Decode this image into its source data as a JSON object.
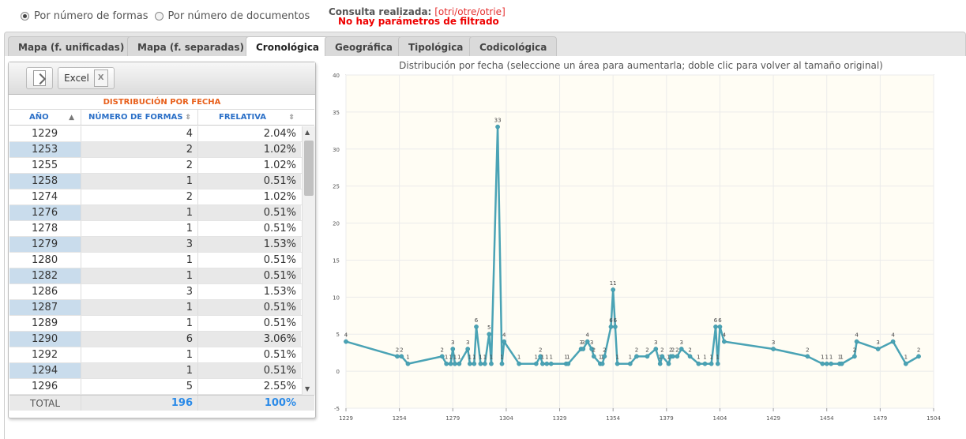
{
  "mode": {
    "option_forms": "Por número de formas",
    "option_docs": "Por número de documentos",
    "selected": "forms"
  },
  "query": {
    "label": "Consulta realizada:",
    "value": "[otri/otre/otrie]",
    "no_filter": "No hay parámetros de filtrado"
  },
  "tabs": [
    {
      "label": "Mapa (f. unificadas)"
    },
    {
      "label": "Mapa (f. separadas)"
    },
    {
      "label": "Cronológica",
      "active": true
    },
    {
      "label": "Geográfica"
    },
    {
      "label": "Tipológica"
    },
    {
      "label": "Codicológica"
    }
  ],
  "toolbar": {
    "excel_label": "Excel"
  },
  "table": {
    "caption": "DISTRIBUCIÓN POR FECHA",
    "headers": {
      "year": "AÑO",
      "count": "NÚMERO DE FORMAS",
      "rel": "FRELATIVA"
    },
    "rows": [
      {
        "year": "1229",
        "count": "4",
        "rel": "2.04%"
      },
      {
        "year": "1253",
        "count": "2",
        "rel": "1.02%"
      },
      {
        "year": "1255",
        "count": "2",
        "rel": "1.02%"
      },
      {
        "year": "1258",
        "count": "1",
        "rel": "0.51%"
      },
      {
        "year": "1274",
        "count": "2",
        "rel": "1.02%"
      },
      {
        "year": "1276",
        "count": "1",
        "rel": "0.51%"
      },
      {
        "year": "1278",
        "count": "1",
        "rel": "0.51%"
      },
      {
        "year": "1279",
        "count": "3",
        "rel": "1.53%"
      },
      {
        "year": "1280",
        "count": "1",
        "rel": "0.51%"
      },
      {
        "year": "1282",
        "count": "1",
        "rel": "0.51%"
      },
      {
        "year": "1286",
        "count": "3",
        "rel": "1.53%"
      },
      {
        "year": "1287",
        "count": "1",
        "rel": "0.51%"
      },
      {
        "year": "1289",
        "count": "1",
        "rel": "0.51%"
      },
      {
        "year": "1290",
        "count": "6",
        "rel": "3.06%"
      },
      {
        "year": "1292",
        "count": "1",
        "rel": "0.51%"
      },
      {
        "year": "1294",
        "count": "1",
        "rel": "0.51%"
      },
      {
        "year": "1296",
        "count": "5",
        "rel": "2.55%"
      }
    ],
    "total": {
      "label": "TOTAL",
      "count": "196",
      "rel": "100%"
    }
  },
  "chart_data": {
    "type": "line",
    "title": "Distribución por fecha (seleccione un área para aumentarla; doble clic para volver al tamaño original)",
    "xlim": [
      1229,
      1504
    ],
    "ylim": [
      -5,
      40
    ],
    "x_ticks": [
      1229,
      1254,
      1279,
      1304,
      1329,
      1354,
      1379,
      1404,
      1429,
      1454,
      1479,
      1504
    ],
    "y_ticks": [
      -5,
      0,
      5,
      10,
      15,
      20,
      25,
      30,
      35,
      40
    ],
    "grid": true,
    "color": "#4aa3b5",
    "points": [
      [
        1229,
        4
      ],
      [
        1253,
        2
      ],
      [
        1255,
        2
      ],
      [
        1258,
        1
      ],
      [
        1274,
        2
      ],
      [
        1276,
        1
      ],
      [
        1278,
        1
      ],
      [
        1279,
        3
      ],
      [
        1280,
        1
      ],
      [
        1282,
        1
      ],
      [
        1286,
        3
      ],
      [
        1287,
        1
      ],
      [
        1289,
        1
      ],
      [
        1290,
        6
      ],
      [
        1292,
        1
      ],
      [
        1294,
        1
      ],
      [
        1296,
        5
      ],
      [
        1297,
        1
      ],
      [
        1300,
        33
      ],
      [
        1302,
        1
      ],
      [
        1303,
        4
      ],
      [
        1310,
        1
      ],
      [
        1318,
        1
      ],
      [
        1320,
        2
      ],
      [
        1321,
        1
      ],
      [
        1323,
        1
      ],
      [
        1325,
        1
      ],
      [
        1332,
        1
      ],
      [
        1333,
        1
      ],
      [
        1339,
        3
      ],
      [
        1340,
        3
      ],
      [
        1342,
        4
      ],
      [
        1344,
        3
      ],
      [
        1345,
        2
      ],
      [
        1348,
        1
      ],
      [
        1349,
        1
      ],
      [
        1350,
        2
      ],
      [
        1353,
        6
      ],
      [
        1354,
        11
      ],
      [
        1355,
        6
      ],
      [
        1356,
        1
      ],
      [
        1362,
        1
      ],
      [
        1365,
        2
      ],
      [
        1370,
        2
      ],
      [
        1374,
        3
      ],
      [
        1376,
        1
      ],
      [
        1377,
        2
      ],
      [
        1380,
        1
      ],
      [
        1381,
        2
      ],
      [
        1382,
        2
      ],
      [
        1384,
        2
      ],
      [
        1386,
        3
      ],
      [
        1390,
        2
      ],
      [
        1394,
        1
      ],
      [
        1397,
        1
      ],
      [
        1400,
        1
      ],
      [
        1402,
        6
      ],
      [
        1403,
        1
      ],
      [
        1404,
        6
      ],
      [
        1406,
        4
      ],
      [
        1429,
        3
      ],
      [
        1445,
        2
      ],
      [
        1452,
        1
      ],
      [
        1454,
        1
      ],
      [
        1456,
        1
      ],
      [
        1460,
        1
      ],
      [
        1461,
        1
      ],
      [
        1467,
        2
      ],
      [
        1468,
        4
      ],
      [
        1478,
        3
      ],
      [
        1485,
        4
      ],
      [
        1491,
        1
      ],
      [
        1497,
        2
      ]
    ]
  }
}
